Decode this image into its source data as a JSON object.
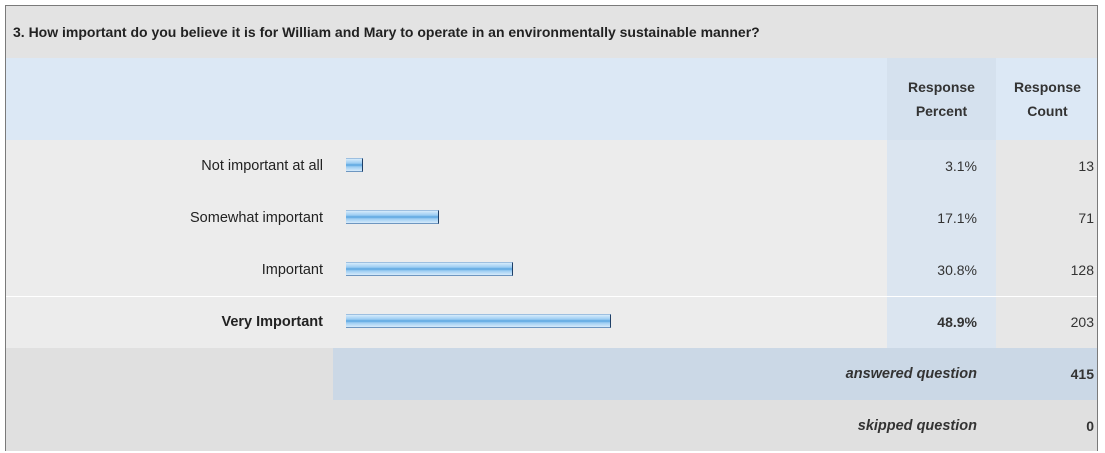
{
  "question": "3. How important do you believe it is for William and Mary to operate in an environmentally sustainable manner?",
  "headers": {
    "percent": [
      "Response",
      "Percent"
    ],
    "count": [
      "Response",
      "Count"
    ]
  },
  "chart_data": {
    "type": "bar",
    "categories": [
      "Not important at all",
      "Somewhat important",
      "Important",
      "Very Important"
    ],
    "series": [
      {
        "name": "Response Percent",
        "values": [
          3.1,
          17.1,
          30.8,
          48.9
        ]
      },
      {
        "name": "Response Count",
        "values": [
          13,
          71,
          128,
          203
        ]
      }
    ],
    "percent_labels": [
      "3.1%",
      "17.1%",
      "30.8%",
      "48.9%"
    ],
    "highlighted_category": "Very Important",
    "bar_color": "#7fbef0"
  },
  "summary": {
    "answered_label": "answered question",
    "answered_value": "415",
    "skipped_label": "skipped question",
    "skipped_value": "0"
  }
}
